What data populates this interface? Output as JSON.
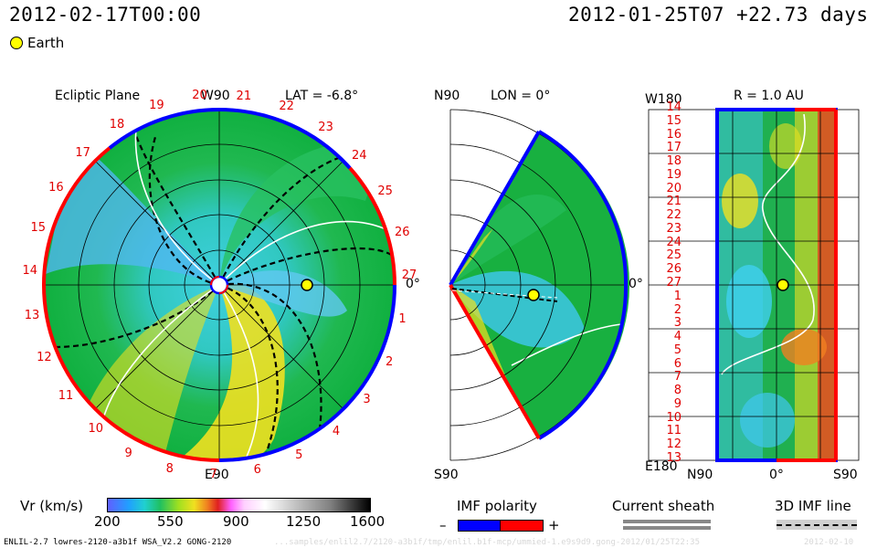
{
  "header": {
    "target_time": "2012-02-17T00:00",
    "run_time": "2012-01-25T07 +22.73 days"
  },
  "legend": {
    "earth_label": "Earth",
    "earth_color": "#ffff00"
  },
  "panels": {
    "ecliptic": {
      "title": "Ecliptic Plane",
      "top_label": "W90",
      "bottom_label": "E90",
      "right_label": "0°",
      "lat_label": "LAT = -6.8°",
      "carrington_ticks": [
        "20",
        "21",
        "22",
        "23",
        "24",
        "25",
        "26",
        "27",
        "1",
        "2",
        "3",
        "4",
        "5",
        "6",
        "7",
        "8",
        "9",
        "10",
        "11",
        "12",
        "13",
        "14",
        "15",
        "16",
        "17",
        "18",
        "19"
      ]
    },
    "meridional": {
      "top_label": "N90",
      "bottom_label": "S90",
      "right_label": "0°",
      "lon_label": "LON = 0°"
    },
    "radial": {
      "title": "R = 1.0 AU",
      "top_left_label": "W180",
      "bottom_left_label": "E180",
      "bottom_labels": [
        "N90",
        "0°",
        "S90"
      ],
      "row_ticks": [
        "14",
        "15",
        "16",
        "17",
        "18",
        "19",
        "20",
        "21",
        "22",
        "23",
        "24",
        "25",
        "26",
        "27",
        "1",
        "2",
        "3",
        "4",
        "5",
        "6",
        "7",
        "8",
        "9",
        "10",
        "11",
        "12",
        "13"
      ]
    }
  },
  "colorbar": {
    "label": "Vr (km/s)",
    "ticks": [
      "200",
      "550",
      "900",
      "1250",
      "1600"
    ]
  },
  "imf": {
    "label": "IMF polarity",
    "minus": "–",
    "plus": "+",
    "neg_color": "#0000ff",
    "pos_color": "#ff0000"
  },
  "current_sheath": {
    "label": "Current sheath"
  },
  "imf_line": {
    "label": "3D IMF line"
  },
  "footer": {
    "model": "ENLIL-2.7 lowres-2120-a3b1f WSA_V2.2 GONG-2120",
    "path": "...samples/enlil2.7/2120-a3b1f/tmp/enlil.b1f-mcp/ummied-1.e9s9d9.gong-2012/01/25T22:35",
    "date_fragment": "2012-02-10"
  }
}
